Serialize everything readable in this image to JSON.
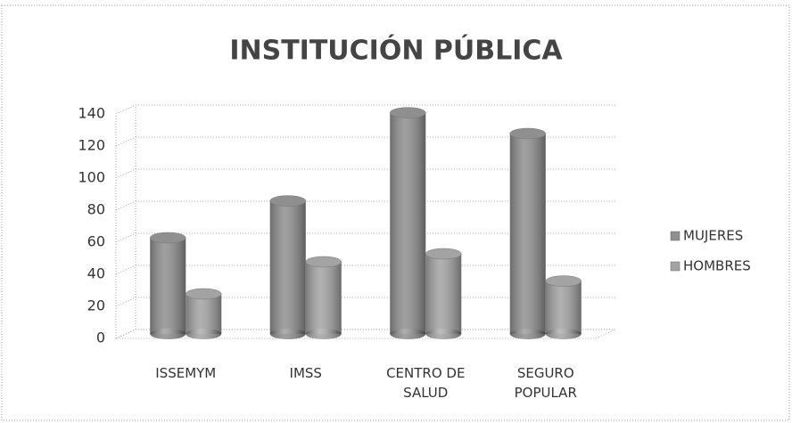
{
  "chart_data": {
    "type": "bar",
    "title": "INSTITUCIÓN PÚBLICA",
    "categories": [
      "ISSEMYM",
      "IMSS",
      "CENTRO DE SALUD",
      "SEGURO POPULAR"
    ],
    "series": [
      {
        "name": "MUJERES",
        "color": "#8f8f8f",
        "values": [
          60,
          83,
          138,
          125
        ]
      },
      {
        "name": "HOMBRES",
        "color": "#a3a3a3",
        "values": [
          25,
          45,
          50,
          33
        ]
      }
    ],
    "ylim": [
      0,
      140
    ],
    "yticks": [
      0,
      20,
      40,
      60,
      80,
      100,
      120,
      140
    ],
    "grid": true,
    "legend": "right"
  }
}
